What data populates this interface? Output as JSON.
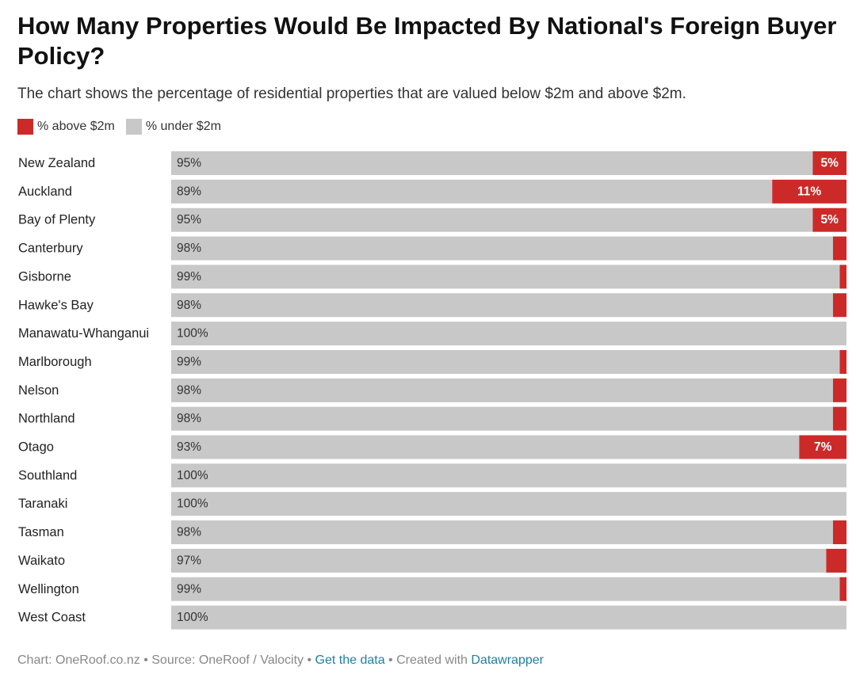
{
  "chart_data": {
    "type": "bar",
    "stacked": true,
    "orientation": "horizontal",
    "title": "How Many Properties Would Be Impacted By National's Foreign Buyer Policy?",
    "subtitle": "The chart shows the percentage of residential properties that are valued below $2m and above $2m.",
    "legend_position": "top-left",
    "categories": [
      "New Zealand",
      "Auckland",
      "Bay of Plenty",
      "Canterbury",
      "Gisborne",
      "Hawke's Bay",
      "Manawatu-Whanganui",
      "Marlborough",
      "Nelson",
      "Northland",
      "Otago",
      "Southland",
      "Taranaki",
      "Tasman",
      "Waikato",
      "Wellington",
      "West Coast"
    ],
    "series": [
      {
        "name": "% under $2m",
        "color": "#c8c8c8",
        "values": [
          95,
          89,
          95,
          98,
          99,
          98,
          100,
          99,
          98,
          98,
          93,
          100,
          100,
          98,
          97,
          99,
          100
        ],
        "labels": [
          "95%",
          "89%",
          "95%",
          "98%",
          "99%",
          "98%",
          "100%",
          "99%",
          "98%",
          "98%",
          "93%",
          "100%",
          "100%",
          "98%",
          "97%",
          "99%",
          "100%"
        ]
      },
      {
        "name": "% above $2m",
        "color": "#cc2a28",
        "values": [
          5,
          11,
          5,
          2,
          1,
          2,
          0,
          1,
          2,
          2,
          7,
          0,
          0,
          2,
          3,
          1,
          0
        ],
        "labels": [
          "5%",
          "11%",
          "5%",
          "",
          "",
          "",
          "",
          "",
          "",
          "",
          "7%",
          "",
          "",
          "",
          "",
          "",
          ""
        ]
      }
    ],
    "xlim": [
      0,
      100
    ]
  },
  "legend": [
    {
      "label": "% above $2m",
      "color": "#cc2a28"
    },
    {
      "label": "% under $2m",
      "color": "#c8c8c8"
    }
  ],
  "footer": {
    "chart_credit": "Chart: OneRoof.co.nz",
    "separator": " • ",
    "source": "Source: OneRoof / Valocity",
    "get_data": "Get the data",
    "created_with": "Created with ",
    "tool": "Datawrapper"
  }
}
